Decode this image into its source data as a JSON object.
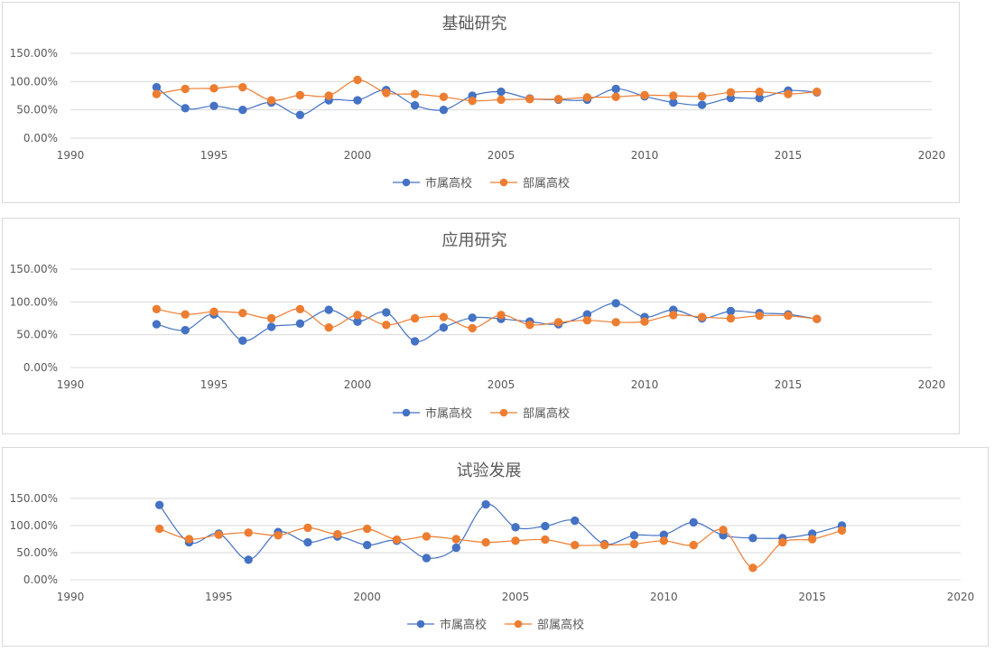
{
  "colors": {
    "series_1": "#4472c4",
    "series_2": "#ed7d31",
    "grid": "#d9d9d9",
    "text": "#595959"
  },
  "chart_data": [
    {
      "type": "scatter",
      "title": "基础研究",
      "xlim": [
        1990,
        2020
      ],
      "ylim": [
        0,
        1.5
      ],
      "x_ticks": [
        "1990",
        "1995",
        "2000",
        "2005",
        "2010",
        "2015",
        "2020"
      ],
      "y_ticks": [
        "0.00%",
        "50.00%",
        "100.00%",
        "150.00%"
      ],
      "x": [
        1993,
        1994,
        1995,
        1996,
        1997,
        1998,
        1999,
        2000,
        2001,
        2002,
        2003,
        2004,
        2005,
        2006,
        2007,
        2008,
        2009,
        2010,
        2011,
        2012,
        2013,
        2014,
        2015,
        2016
      ],
      "series": [
        {
          "name": "市属高校",
          "values": [
            0.9,
            0.53,
            0.57,
            0.5,
            0.63,
            0.41,
            0.67,
            0.67,
            0.85,
            0.58,
            0.5,
            0.75,
            0.82,
            0.7,
            0.68,
            0.68,
            0.87,
            0.74,
            0.63,
            0.59,
            0.71,
            0.71,
            0.84,
            0.81
          ]
        },
        {
          "name": "部属高校",
          "values": [
            0.78,
            0.87,
            0.88,
            0.9,
            0.67,
            0.76,
            0.75,
            1.03,
            0.8,
            0.78,
            0.73,
            0.66,
            0.68,
            0.69,
            0.69,
            0.72,
            0.73,
            0.76,
            0.75,
            0.74,
            0.81,
            0.82,
            0.78,
            0.82
          ]
        }
      ],
      "legend": [
        "市属高校",
        "部属高校"
      ]
    },
    {
      "type": "scatter",
      "title": "应用研究",
      "xlim": [
        1990,
        2020
      ],
      "ylim": [
        0,
        1.5
      ],
      "x_ticks": [
        "1990",
        "1995",
        "2000",
        "2005",
        "2010",
        "2015",
        "2020"
      ],
      "y_ticks": [
        "0.00%",
        "50.00%",
        "100.00%",
        "150.00%"
      ],
      "x": [
        1993,
        1994,
        1995,
        1996,
        1997,
        1998,
        1999,
        2000,
        2001,
        2002,
        2003,
        2004,
        2005,
        2006,
        2007,
        2008,
        2009,
        2010,
        2011,
        2012,
        2013,
        2014,
        2015,
        2016
      ],
      "series": [
        {
          "name": "市属高校",
          "values": [
            0.66,
            0.57,
            0.81,
            0.41,
            0.62,
            0.67,
            0.88,
            0.7,
            0.84,
            0.4,
            0.61,
            0.76,
            0.74,
            0.7,
            0.66,
            0.81,
            0.98,
            0.77,
            0.88,
            0.75,
            0.86,
            0.83,
            0.81,
            0.74
          ]
        },
        {
          "name": "部属高校",
          "values": [
            0.89,
            0.81,
            0.85,
            0.83,
            0.75,
            0.89,
            0.61,
            0.8,
            0.65,
            0.75,
            0.77,
            0.6,
            0.8,
            0.65,
            0.69,
            0.72,
            0.69,
            0.7,
            0.8,
            0.77,
            0.75,
            0.79,
            0.79,
            0.74
          ]
        }
      ],
      "legend": [
        "市属高校",
        "部属高校"
      ]
    },
    {
      "type": "scatter",
      "title": "试验发展",
      "xlim": [
        1990,
        2020
      ],
      "ylim": [
        0,
        1.5
      ],
      "x_ticks": [
        "1990",
        "1995",
        "2000",
        "2005",
        "2010",
        "2015",
        "2020"
      ],
      "y_ticks": [
        "0.00%",
        "50.00%",
        "100.00%",
        "150.00%"
      ],
      "x": [
        1993,
        1994,
        1995,
        1996,
        1997,
        1998,
        1999,
        2000,
        2001,
        2002,
        2003,
        2004,
        2005,
        2006,
        2007,
        2008,
        2009,
        2010,
        2011,
        2012,
        2013,
        2014,
        2015,
        2016
      ],
      "series": [
        {
          "name": "市属高校",
          "values": [
            1.38,
            0.69,
            0.85,
            0.37,
            0.88,
            0.69,
            0.8,
            0.64,
            0.72,
            0.4,
            0.59,
            1.39,
            0.97,
            0.99,
            1.09,
            0.66,
            0.82,
            0.83,
            1.06,
            0.82,
            0.77,
            0.77,
            0.85,
            1.0
          ]
        },
        {
          "name": "部属高校",
          "values": [
            0.94,
            0.75,
            0.83,
            0.87,
            0.82,
            0.96,
            0.84,
            0.94,
            0.74,
            0.8,
            0.75,
            0.69,
            0.72,
            0.74,
            0.64,
            0.64,
            0.66,
            0.72,
            0.64,
            0.92,
            0.22,
            0.69,
            0.75,
            0.91
          ]
        }
      ],
      "legend": [
        "市属高校",
        "部属高校"
      ]
    }
  ]
}
